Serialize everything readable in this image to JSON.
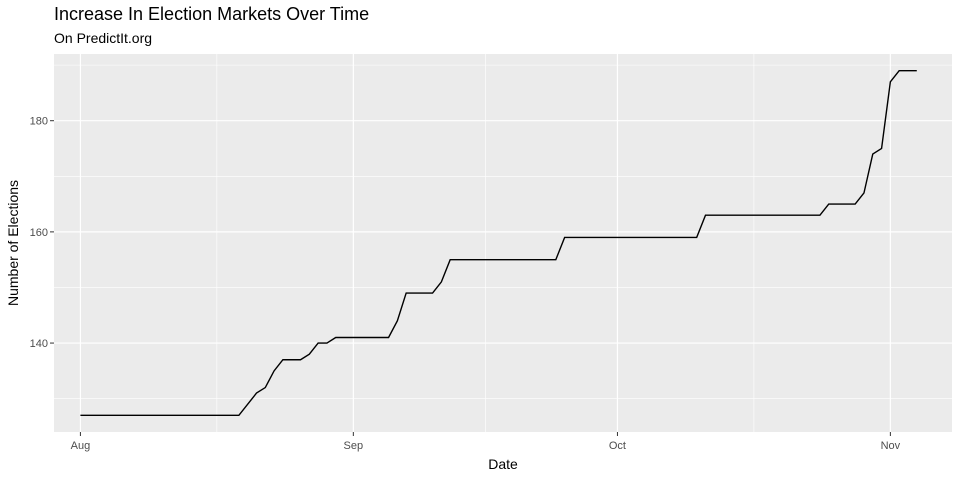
{
  "chart_data": {
    "type": "line",
    "title": "Increase In Election Markets Over Time",
    "subtitle": "On PredictIt.org",
    "xlabel": "Date",
    "ylabel": "Number of Elections",
    "x_ticks": [
      {
        "label": "Aug",
        "date": "2018-08-01"
      },
      {
        "label": "Sep",
        "date": "2018-09-01"
      },
      {
        "label": "Oct",
        "date": "2018-10-01"
      },
      {
        "label": "Nov",
        "date": "2018-11-01"
      }
    ],
    "y_ticks": [
      140,
      160,
      180
    ],
    "xlim": [
      "2017-07-29",
      "2017-11-08"
    ],
    "ylim": [
      124,
      192
    ],
    "grid": true,
    "panel_background": "#ebebeb",
    "grid_color": "#ffffff",
    "line_color": "#000000",
    "series": [
      {
        "x": [
          "2017-08-01",
          "2017-08-19",
          "2017-08-21",
          "2017-08-22",
          "2017-08-23",
          "2017-08-24",
          "2017-08-26",
          "2017-08-27",
          "2017-08-28",
          "2017-08-29",
          "2017-08-30",
          "2017-08-31",
          "2017-09-05",
          "2017-09-06",
          "2017-09-07",
          "2017-09-10",
          "2017-09-11",
          "2017-09-12",
          "2017-09-24",
          "2017-09-25",
          "2017-10-10",
          "2017-10-11",
          "2017-10-24",
          "2017-10-25",
          "2017-10-28",
          "2017-10-29",
          "2017-10-30",
          "2017-10-31",
          "2017-11-01",
          "2017-11-02",
          "2017-11-04"
        ],
        "y": [
          127,
          127,
          131,
          132,
          135,
          137,
          137,
          138,
          140,
          140,
          141,
          141,
          141,
          144,
          149,
          149,
          151,
          155,
          155,
          159,
          159,
          163,
          163,
          165,
          165,
          167,
          174,
          175,
          187,
          189,
          189
        ]
      }
    ]
  }
}
